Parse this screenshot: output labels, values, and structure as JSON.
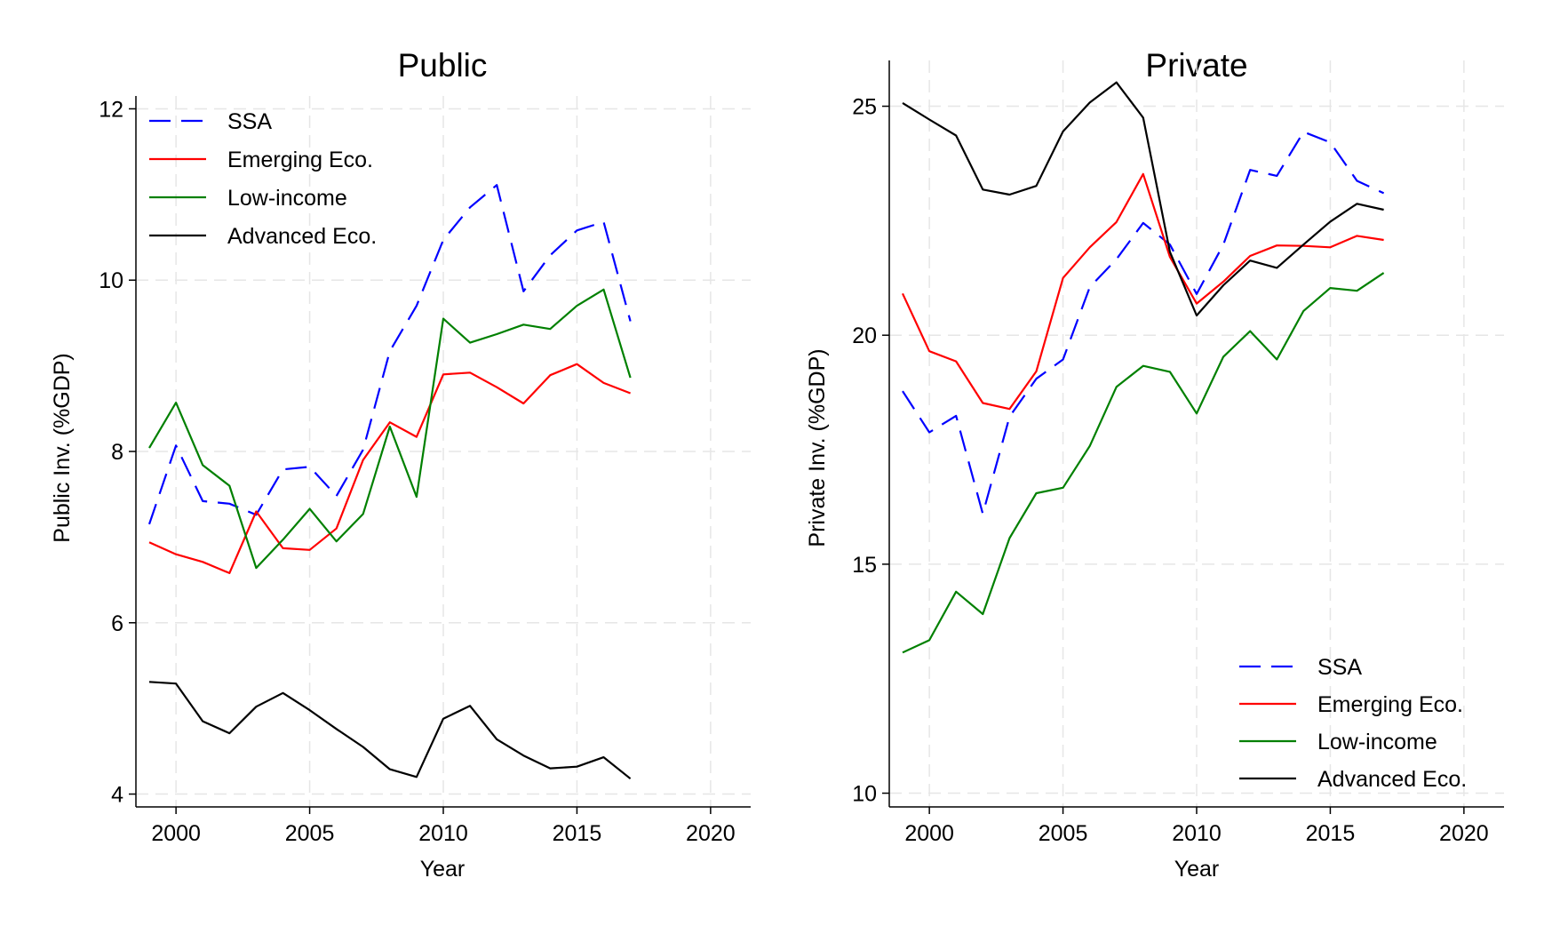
{
  "chart_data": [
    {
      "type": "line",
      "title": "Public",
      "xlabel": "Year",
      "ylabel": "Public Inv. (%GDP)",
      "xlim": [
        1998.5,
        2021.5
      ],
      "ylim": [
        3.85,
        12.15
      ],
      "xticks": [
        2000,
        2005,
        2010,
        2015,
        2020
      ],
      "yticks": [
        4,
        6,
        8,
        10,
        12
      ],
      "grid": true,
      "legend_position": "top-left",
      "x": [
        1999,
        2000,
        2001,
        2002,
        2003,
        2004,
        2005,
        2006,
        2007,
        2008,
        2009,
        2010,
        2011,
        2012,
        2013,
        2014,
        2015,
        2016,
        2017
      ],
      "series": [
        {
          "name": "SSA",
          "color": "#0000ff",
          "dash": "dashed",
          "values": [
            7.15,
            8.07,
            7.42,
            7.39,
            7.26,
            7.79,
            7.82,
            7.48,
            8.02,
            9.17,
            9.7,
            10.47,
            10.85,
            11.11,
            9.87,
            10.29,
            10.58,
            10.68,
            9.52
          ]
        },
        {
          "name": "Emerging Eco.",
          "color": "#ff0000",
          "dash": "solid",
          "values": [
            6.94,
            6.8,
            6.71,
            6.58,
            7.3,
            6.87,
            6.85,
            7.1,
            7.9,
            8.34,
            8.17,
            8.9,
            8.92,
            8.75,
            8.56,
            8.89,
            9.02,
            8.8,
            8.68
          ]
        },
        {
          "name": "Low-income",
          "color": "#008000",
          "dash": "solid",
          "values": [
            8.04,
            8.57,
            7.84,
            7.6,
            6.64,
            6.97,
            7.33,
            6.95,
            7.27,
            8.29,
            7.47,
            9.55,
            9.27,
            9.37,
            9.48,
            9.43,
            9.7,
            9.89,
            8.86
          ]
        },
        {
          "name": "Advanced Eco.",
          "color": "#000000",
          "dash": "solid",
          "values": [
            5.31,
            5.29,
            4.85,
            4.71,
            5.02,
            5.18,
            4.98,
            4.76,
            4.55,
            4.29,
            4.2,
            4.88,
            5.03,
            4.64,
            4.45,
            4.3,
            4.32,
            4.43,
            4.18
          ]
        }
      ]
    },
    {
      "type": "line",
      "title": "Private",
      "xlabel": "Year",
      "ylabel": "Private Inv. (%GDP)",
      "xlim": [
        1998.5,
        2021.5
      ],
      "ylim": [
        9.7,
        26.0
      ],
      "xticks": [
        2000,
        2005,
        2010,
        2015,
        2020
      ],
      "yticks": [
        10,
        15,
        20,
        25
      ],
      "grid": true,
      "legend_position": "bottom-right",
      "x": [
        1999,
        2000,
        2001,
        2002,
        2003,
        2004,
        2005,
        2006,
        2007,
        2008,
        2009,
        2010,
        2011,
        2012,
        2013,
        2014,
        2015,
        2016,
        2017
      ],
      "series": [
        {
          "name": "SSA",
          "color": "#0000ff",
          "dash": "dashed",
          "values": [
            18.78,
            17.88,
            18.24,
            16.1,
            18.22,
            19.05,
            19.47,
            21.05,
            21.66,
            22.45,
            21.98,
            20.9,
            21.98,
            23.61,
            23.48,
            24.44,
            24.21,
            23.37,
            23.1
          ]
        },
        {
          "name": "Emerging Eco.",
          "color": "#ff0000",
          "dash": "solid",
          "values": [
            20.91,
            19.65,
            19.43,
            18.52,
            18.39,
            19.21,
            21.25,
            21.92,
            22.47,
            23.52,
            21.71,
            20.69,
            21.17,
            21.73,
            21.96,
            21.95,
            21.92,
            22.17,
            22.08
          ]
        },
        {
          "name": "Low-income",
          "color": "#008000",
          "dash": "solid",
          "values": [
            13.07,
            13.34,
            14.4,
            13.91,
            15.57,
            16.55,
            16.67,
            17.58,
            18.87,
            19.33,
            19.2,
            18.29,
            19.53,
            20.09,
            19.47,
            20.53,
            21.03,
            20.97,
            21.36
          ]
        },
        {
          "name": "Advanced Eco.",
          "color": "#000000",
          "dash": "solid",
          "values": [
            25.07,
            24.71,
            24.36,
            23.18,
            23.07,
            23.26,
            24.45,
            25.08,
            25.52,
            24.75,
            21.82,
            20.43,
            21.09,
            21.63,
            21.47,
            21.98,
            22.48,
            22.87,
            22.74
          ]
        }
      ]
    }
  ]
}
